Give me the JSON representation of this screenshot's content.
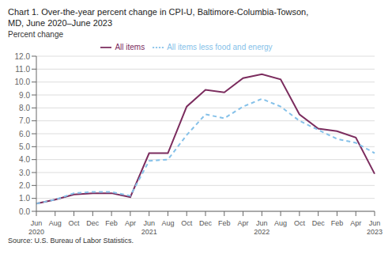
{
  "chart_data": {
    "type": "line",
    "title": "Chart 1. Over-the-year percent change in CPI-U, Baltimore-Columbia-Towson,\nMD, June 2020–June 2023",
    "y_label": "Percent change",
    "annotations": [
      "Source: U.S. Bureau of Labor Statistics."
    ],
    "categories": [
      "Jun 2020",
      "Aug",
      "Oct",
      "Dec",
      "Feb",
      "Apr",
      "Jun 2021",
      "Aug",
      "Oct",
      "Dec",
      "Feb",
      "Apr",
      "Jun 2022",
      "Aug",
      "Oct",
      "Dec",
      "Feb",
      "Apr",
      "Jun 2023"
    ],
    "series": [
      {
        "name": "All items",
        "color": "#7B2C5E",
        "line_style": "solid",
        "values": [
          0.6,
          0.9,
          1.3,
          1.4,
          1.4,
          1.1,
          4.5,
          4.5,
          8.1,
          9.4,
          9.2,
          10.3,
          10.6,
          10.2,
          7.5,
          6.4,
          6.2,
          5.7,
          2.9
        ]
      },
      {
        "name": "All items less food and energy",
        "color": "#85C1E9",
        "line_style": "dashed",
        "values": [
          0.6,
          0.9,
          1.4,
          1.5,
          1.5,
          1.2,
          3.9,
          4.0,
          5.9,
          7.5,
          7.2,
          8.1,
          8.7,
          8.1,
          7.0,
          6.3,
          5.6,
          5.3,
          4.5
        ]
      }
    ],
    "ylim": [
      0.0,
      12.0
    ],
    "yticks": [
      {
        "value": 0,
        "label": "0.0"
      },
      {
        "value": 1,
        "label": "1.0"
      },
      {
        "value": 2,
        "label": "2.0"
      },
      {
        "value": 3,
        "label": "3.0"
      },
      {
        "value": 4,
        "label": "4.0"
      },
      {
        "value": 5,
        "label": "5.0"
      },
      {
        "value": 6,
        "label": "6.0"
      },
      {
        "value": 7,
        "label": "7.0"
      },
      {
        "value": 8,
        "label": "8.0"
      },
      {
        "value": 9,
        "label": "9.0"
      },
      {
        "value": 10,
        "label": "10.0"
      },
      {
        "value": 11,
        "label": "11.0"
      },
      {
        "value": 12,
        "label": "12.0"
      }
    ],
    "grid": true,
    "legend": "top"
  }
}
